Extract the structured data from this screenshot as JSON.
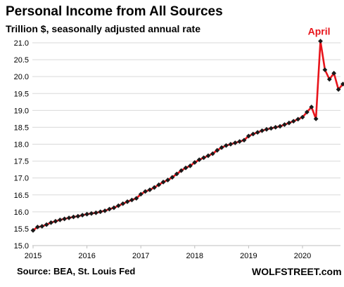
{
  "chart_data": {
    "type": "line",
    "title": "Personal Income from All Sources",
    "subtitle": "Trillion $, seasonally adjusted annual rate",
    "xlabel": "",
    "ylabel": "",
    "ylim": [
      15.0,
      21.0
    ],
    "yticks": [
      "15.0",
      "15.5",
      "16.0",
      "16.5",
      "17.0",
      "17.5",
      "18.0",
      "18.5",
      "19.0",
      "19.5",
      "20.0",
      "20.5",
      "21.0"
    ],
    "xticks": [
      "2015",
      "2016",
      "2017",
      "2018",
      "2019",
      "2020"
    ],
    "grid": "horizontal",
    "legend": "none",
    "start": "2015-01",
    "series": [
      {
        "line_color": "#e8141b",
        "marker_color": "#1a1a1a",
        "values": [
          15.45,
          15.55,
          15.57,
          15.62,
          15.68,
          15.72,
          15.76,
          15.79,
          15.82,
          15.85,
          15.87,
          15.9,
          15.93,
          15.95,
          15.97,
          16.0,
          16.03,
          16.08,
          16.12,
          16.18,
          16.24,
          16.3,
          16.35,
          16.4,
          16.52,
          16.6,
          16.65,
          16.72,
          16.8,
          16.88,
          16.94,
          17.02,
          17.12,
          17.22,
          17.3,
          17.36,
          17.46,
          17.54,
          17.6,
          17.66,
          17.72,
          17.82,
          17.9,
          17.96,
          18.0,
          18.04,
          18.08,
          18.12,
          18.24,
          18.3,
          18.35,
          18.4,
          18.44,
          18.47,
          18.5,
          18.53,
          18.58,
          18.63,
          18.68,
          18.74,
          18.8,
          18.95,
          19.1,
          18.75,
          21.05,
          20.2,
          19.92,
          20.1,
          19.62,
          19.78
        ]
      }
    ],
    "annotations": [
      {
        "text": "April",
        "color": "#e8141b"
      }
    ]
  },
  "source": "Source: BEA, St. Louis Fed",
  "brand": "WOLFSTREET.com"
}
